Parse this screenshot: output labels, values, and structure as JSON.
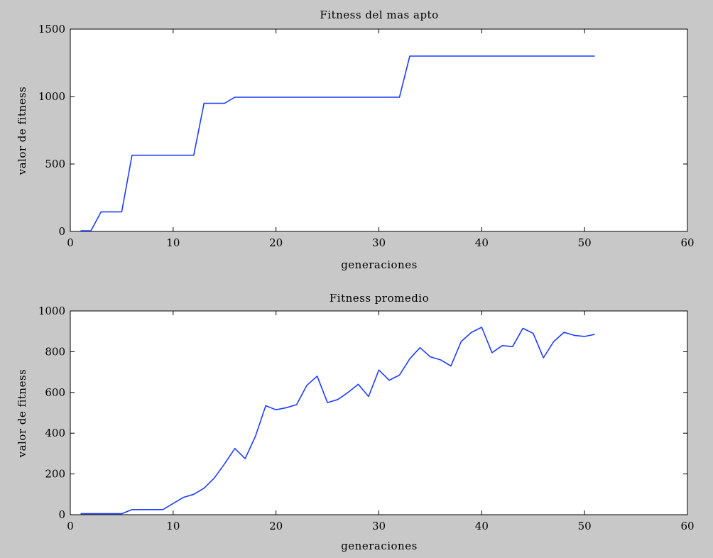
{
  "figure": {
    "background": "#c8c8c8",
    "axes_background": "#ffffff",
    "line_color": "#1f3cff"
  },
  "chart_data": [
    {
      "type": "line",
      "title": "Fitness del mas apto",
      "xlabel": "generaciones",
      "ylabel": "valor de fitness",
      "xlim": [
        0,
        60
      ],
      "ylim": [
        0,
        1500
      ],
      "xticks": [
        0,
        10,
        20,
        30,
        40,
        50,
        60
      ],
      "yticks": [
        0,
        500,
        1000,
        1500
      ],
      "grid": false,
      "series": [
        {
          "x": [
            1,
            2,
            3,
            4,
            5,
            6,
            7,
            8,
            9,
            10,
            11,
            12,
            13,
            14,
            15,
            16,
            17,
            18,
            19,
            20,
            21,
            22,
            23,
            24,
            25,
            26,
            27,
            28,
            29,
            30,
            31,
            32,
            33,
            34,
            35,
            36,
            37,
            38,
            39,
            40,
            41,
            42,
            43,
            44,
            45,
            46,
            47,
            48,
            49,
            50,
            51
          ],
          "values": [
            5,
            5,
            145,
            145,
            145,
            565,
            565,
            565,
            565,
            565,
            565,
            565,
            950,
            950,
            950,
            995,
            995,
            995,
            995,
            995,
            995,
            995,
            995,
            995,
            995,
            995,
            995,
            995,
            995,
            995,
            995,
            995,
            1300,
            1300,
            1300,
            1300,
            1300,
            1300,
            1300,
            1300,
            1300,
            1300,
            1300,
            1300,
            1300,
            1300,
            1300,
            1300,
            1300,
            1300,
            1300
          ]
        }
      ]
    },
    {
      "type": "line",
      "title": "Fitness promedio",
      "xlabel": "generaciones",
      "ylabel": "valor de fitness",
      "xlim": [
        0,
        60
      ],
      "ylim": [
        0,
        1000
      ],
      "xticks": [
        0,
        10,
        20,
        30,
        40,
        50,
        60
      ],
      "yticks": [
        0,
        200,
        400,
        600,
        800,
        1000
      ],
      "grid": false,
      "series": [
        {
          "x": [
            1,
            2,
            3,
            4,
            5,
            6,
            7,
            8,
            9,
            10,
            11,
            12,
            13,
            14,
            15,
            16,
            17,
            18,
            19,
            20,
            21,
            22,
            23,
            24,
            25,
            26,
            27,
            28,
            29,
            30,
            31,
            32,
            33,
            34,
            35,
            36,
            37,
            38,
            39,
            40,
            41,
            42,
            43,
            44,
            45,
            46,
            47,
            48,
            49,
            50,
            51
          ],
          "values": [
            5,
            5,
            5,
            5,
            5,
            25,
            25,
            25,
            25,
            55,
            85,
            100,
            130,
            180,
            250,
            325,
            275,
            385,
            535,
            515,
            525,
            540,
            635,
            680,
            550,
            565,
            600,
            640,
            580,
            710,
            660,
            685,
            765,
            820,
            775,
            760,
            730,
            850,
            895,
            920,
            795,
            830,
            825,
            915,
            890,
            770,
            850,
            895,
            880,
            875,
            885
          ]
        }
      ]
    }
  ]
}
